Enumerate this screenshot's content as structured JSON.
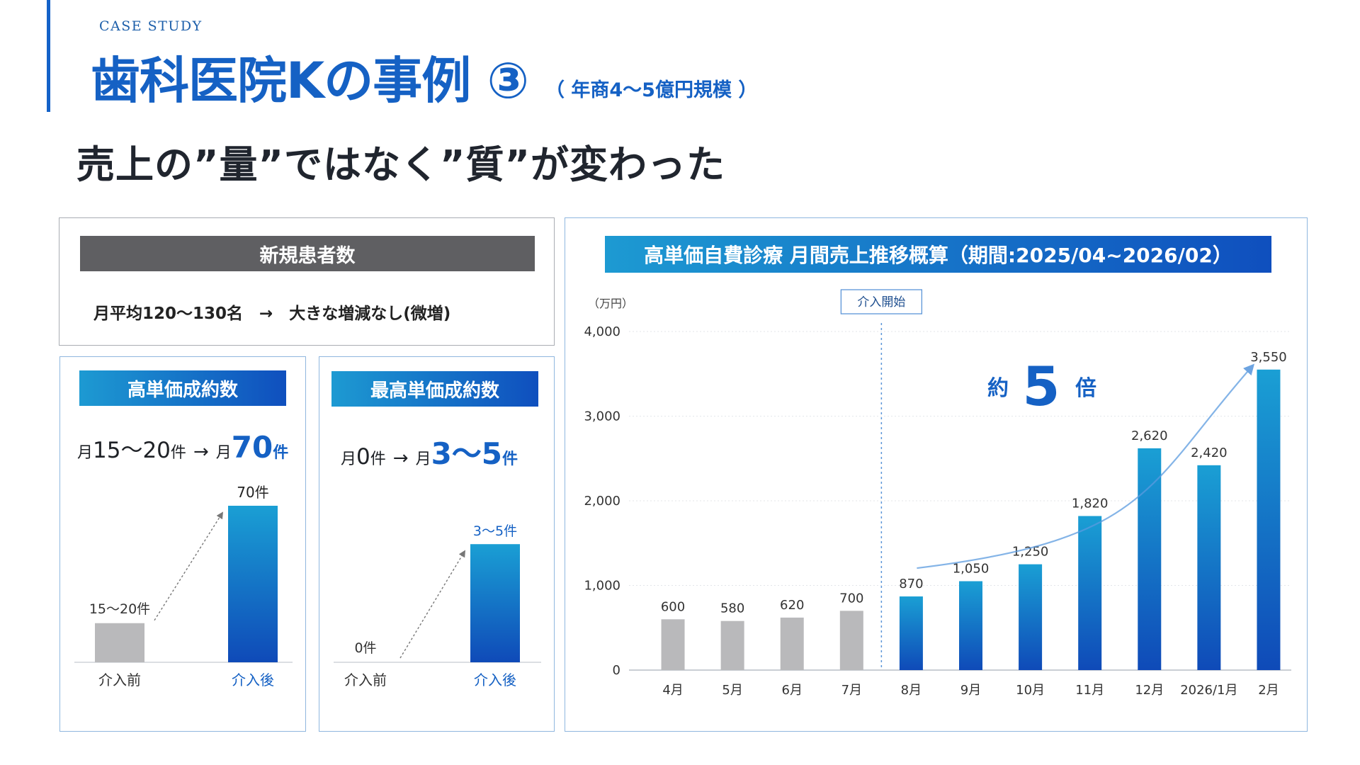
{
  "header": {
    "kicker": "CASE STUDY",
    "title": "歯科医院Kの事例 ③",
    "scale_note": "（ 年商4～5億円規模 ）",
    "headline": "売上の”量”ではなく”質”が変わった"
  },
  "new_patients": {
    "title": "新規患者数",
    "text": "月平均120～130名　→　大きな増減なし(微増)"
  },
  "high_price_contracts": {
    "title": "高単価成約数",
    "stat_before_prefix": "月",
    "stat_before_value": "15～20",
    "stat_before_unit": "件",
    "stat_after_prefix": "月",
    "stat_after_value": "70",
    "stat_after_unit": "件",
    "arrow": "→",
    "bar_before_label": "15～20件",
    "bar_after_label": "70件",
    "x_before": "介入前",
    "x_after": "介入後",
    "before_value": 17.5,
    "after_value": 70,
    "colors": {
      "before": "#b9b9bb",
      "after": "#1562c6"
    }
  },
  "top_price_contracts": {
    "title": "最高単価成約数",
    "stat_before_prefix": "月",
    "stat_before_value": "0",
    "stat_before_unit": "件",
    "stat_after_prefix": "月",
    "stat_after_value": "3～5",
    "stat_after_unit": "件",
    "arrow": "→",
    "bar_before_label": "0件",
    "bar_after_label": "3～5件",
    "x_before": "介入前",
    "x_after": "介入後",
    "before_value": 0,
    "after_value": 4
  },
  "chart_data": {
    "type": "bar",
    "title": "高単価自費診療 月間売上推移概算（期間:2025/04~2026/02）",
    "unit_label": "（万円）",
    "categories": [
      "4月",
      "5月",
      "6月",
      "7月",
      "8月",
      "9月",
      "10月",
      "11月",
      "12月",
      "2026/1月",
      "2月"
    ],
    "values": [
      600,
      580,
      620,
      700,
      870,
      1050,
      1250,
      1820,
      2620,
      2420,
      3550
    ],
    "value_labels": [
      "600",
      "580",
      "620",
      "700",
      "870",
      "1,050",
      "1,250",
      "1,820",
      "2,620",
      "2,420",
      "3,550"
    ],
    "yticks": [
      "0",
      "1,000",
      "2,000",
      "3,000",
      "4,000"
    ],
    "ylim": [
      0,
      4000
    ],
    "intervention_label": "介入開始",
    "intervention_after_index": 3,
    "multiplier_prefix": "約",
    "multiplier_value": "5",
    "multiplier_suffix": "倍",
    "colors": {
      "before": "#b9b9bb",
      "after_top": "#1a9fd4",
      "after_bottom": "#0f4ab8",
      "accent": "#1561c4"
    }
  }
}
